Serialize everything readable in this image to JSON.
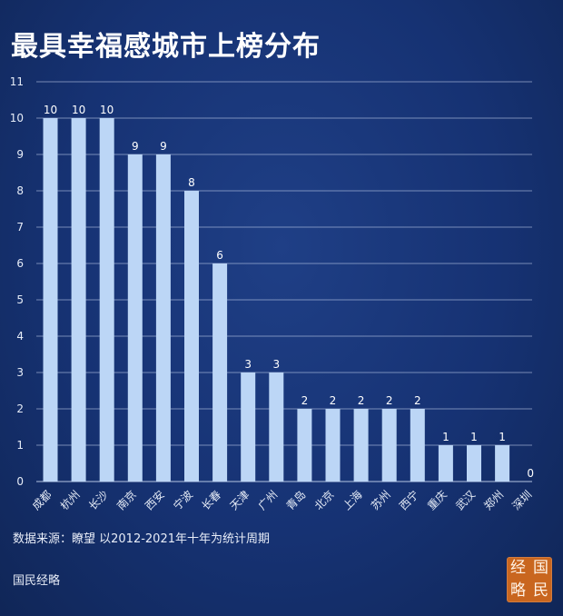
{
  "title": "最具幸福感城市上榜分布",
  "source": "数据来源：瞭望 以2012-2021年十年为统计周期",
  "brand": "国民经略",
  "stamp": [
    "经",
    "国",
    "略",
    "民"
  ],
  "colors": {
    "bar": "#bcd6f6",
    "grid": "#c8d6f0",
    "background": "#163273",
    "stamp": "#c9661f"
  },
  "chart_data": {
    "type": "bar",
    "title": "最具幸福感城市上榜分布",
    "xlabel": "",
    "ylabel": "",
    "ylim": [
      0,
      11
    ],
    "yticks": [
      0,
      1,
      2,
      3,
      4,
      5,
      6,
      7,
      8,
      9,
      10,
      11
    ],
    "grid": true,
    "categories": [
      "成都",
      "杭州",
      "长沙",
      "南京",
      "西安",
      "宁波",
      "长春",
      "天津",
      "广州",
      "青岛",
      "北京",
      "上海",
      "苏州",
      "西宁",
      "重庆",
      "武汉",
      "郑州",
      "深圳"
    ],
    "values": [
      10,
      10,
      10,
      9,
      9,
      8,
      6,
      3,
      3,
      2,
      2,
      2,
      2,
      2,
      1,
      1,
      1,
      0
    ]
  }
}
